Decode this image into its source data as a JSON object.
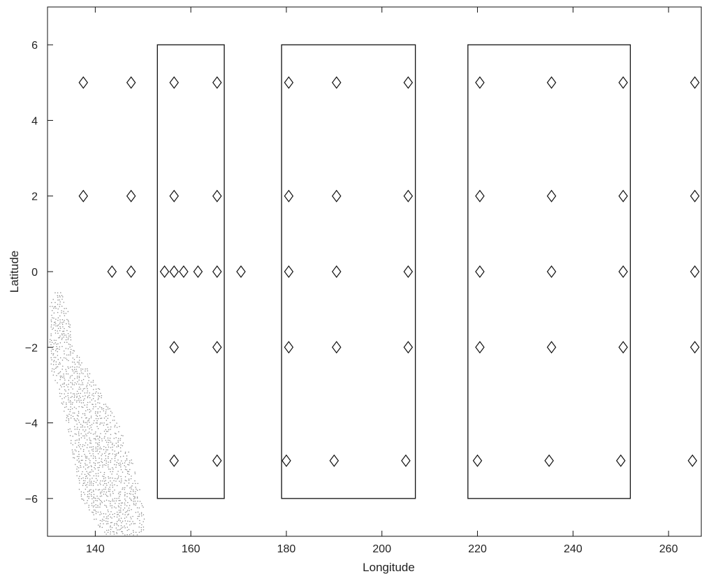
{
  "chart_data": {
    "type": "scatter",
    "title": "",
    "xlabel": "Longitude",
    "ylabel": "Latitude",
    "xlim": [
      130,
      267
    ],
    "ylim": [
      -7,
      7
    ],
    "xticks": [
      140,
      160,
      180,
      200,
      220,
      240,
      260
    ],
    "yticks": [
      -6,
      -4,
      -2,
      0,
      2,
      4,
      6
    ],
    "xtick_labels": [
      "140",
      "160",
      "180",
      "200",
      "220",
      "240",
      "260"
    ],
    "ytick_labels": [
      "−6",
      "−4",
      "−2",
      "0",
      "2",
      "4",
      "6"
    ],
    "grid": false,
    "legend": "none",
    "marker": "diamond",
    "colors": {
      "line": "#111111",
      "background": "#ffffff",
      "land": "#8a8a8a"
    },
    "points": [
      [
        137.5,
        5
      ],
      [
        147.5,
        5
      ],
      [
        156.5,
        5
      ],
      [
        165.5,
        5
      ],
      [
        180.5,
        5
      ],
      [
        190.5,
        5
      ],
      [
        205.5,
        5
      ],
      [
        220.5,
        5
      ],
      [
        235.5,
        5
      ],
      [
        250.5,
        5
      ],
      [
        265.5,
        5
      ],
      [
        137.5,
        2
      ],
      [
        147.5,
        2
      ],
      [
        156.5,
        2
      ],
      [
        165.5,
        2
      ],
      [
        180.5,
        2
      ],
      [
        190.5,
        2
      ],
      [
        205.5,
        2
      ],
      [
        220.5,
        2
      ],
      [
        235.5,
        2
      ],
      [
        250.5,
        2
      ],
      [
        265.5,
        2
      ],
      [
        143.5,
        0
      ],
      [
        147.5,
        0
      ],
      [
        154.5,
        0
      ],
      [
        156.5,
        0
      ],
      [
        158.5,
        0
      ],
      [
        161.5,
        0
      ],
      [
        165.5,
        0
      ],
      [
        170.5,
        0
      ],
      [
        180.5,
        0
      ],
      [
        190.5,
        0
      ],
      [
        205.5,
        0
      ],
      [
        220.5,
        0
      ],
      [
        235.5,
        0
      ],
      [
        250.5,
        0
      ],
      [
        265.5,
        0
      ],
      [
        156.5,
        -2
      ],
      [
        165.5,
        -2
      ],
      [
        180.5,
        -2
      ],
      [
        190.5,
        -2
      ],
      [
        205.5,
        -2
      ],
      [
        220.5,
        -2
      ],
      [
        235.5,
        -2
      ],
      [
        250.5,
        -2
      ],
      [
        265.5,
        -2
      ],
      [
        156.5,
        -5
      ],
      [
        165.5,
        -5
      ],
      [
        180.0,
        -5
      ],
      [
        190.0,
        -5
      ],
      [
        205.0,
        -5
      ],
      [
        220.0,
        -5
      ],
      [
        235.0,
        -5
      ],
      [
        250.0,
        -5
      ],
      [
        265.0,
        -5
      ]
    ],
    "regions": [
      {
        "lon": [
          153,
          167
        ],
        "lat": [
          -6,
          6
        ]
      },
      {
        "lon": [
          179,
          207
        ],
        "lat": [
          -6,
          6
        ]
      },
      {
        "lon": [
          218,
          252
        ],
        "lat": [
          -6,
          6
        ]
      }
    ],
    "land_outline": [
      [
        130.5,
        -0.9
      ],
      [
        132.0,
        -0.4
      ],
      [
        134.0,
        -0.8
      ],
      [
        135.5,
        -2.0
      ],
      [
        138.0,
        -2.5
      ],
      [
        140.5,
        -3.0
      ],
      [
        143.0,
        -3.6
      ],
      [
        145.5,
        -4.2
      ],
      [
        147.5,
        -4.9
      ],
      [
        149.0,
        -5.6
      ],
      [
        150.5,
        -6.3
      ],
      [
        150.0,
        -7.0
      ],
      [
        142.0,
        -7.0
      ],
      [
        137.0,
        -6.0
      ],
      [
        134.0,
        -4.0
      ],
      [
        132.0,
        -3.0
      ],
      [
        130.5,
        -2.5
      ]
    ]
  }
}
